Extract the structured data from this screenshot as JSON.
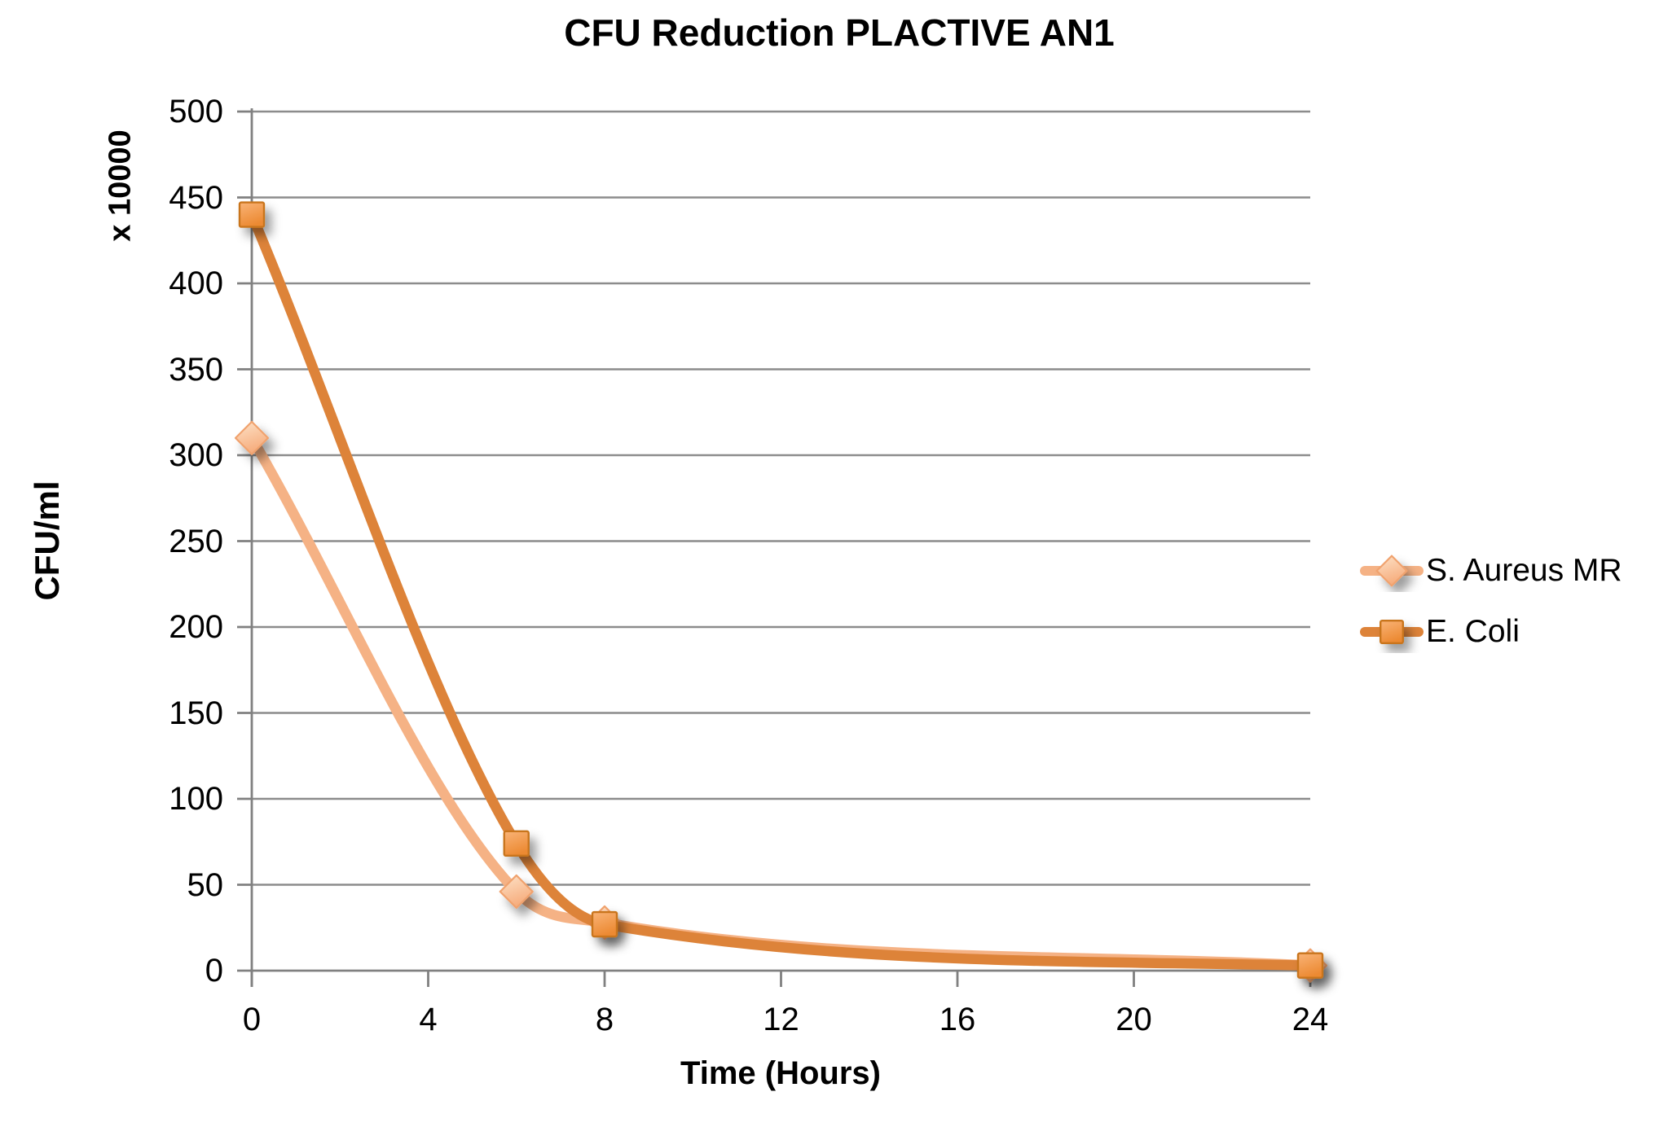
{
  "chart_data": {
    "type": "line",
    "title": "CFU Reduction PLACTIVE AN1",
    "xlabel": "Time (Hours)",
    "ylabel": "CFU/ml",
    "y_axis_multiplier": "x 10000",
    "x": [
      0,
      6,
      8,
      24
    ],
    "series": [
      {
        "name": "S. Aureus MR",
        "marker": "diamond",
        "line_color": "#F5B285",
        "marker_fill_light": "#FDE2C8",
        "marker_fill_dark": "#F6AC7C",
        "marker_border": "#F0A26E",
        "values": [
          310,
          46,
          28,
          3
        ]
      },
      {
        "name": "E. Coli",
        "marker": "square",
        "line_color": "#DD8339",
        "marker_fill_light": "#F9B377",
        "marker_fill_dark": "#EC8A33",
        "marker_border": "#C9751F",
        "values": [
          440,
          74,
          27,
          3
        ]
      }
    ],
    "xticks": [
      0,
      4,
      8,
      12,
      16,
      20,
      24
    ],
    "yticks": [
      0,
      50,
      100,
      150,
      200,
      250,
      300,
      350,
      400,
      450,
      500
    ],
    "xlim": [
      0,
      24
    ],
    "ylim": [
      0,
      500
    ],
    "grid": "horizontal",
    "legend_position": "right",
    "smoothed_lines": true,
    "axis_color": "#808080",
    "gridline_color": "#8C8C8C",
    "text_color": "#000000",
    "background": "#FFFFFF"
  }
}
